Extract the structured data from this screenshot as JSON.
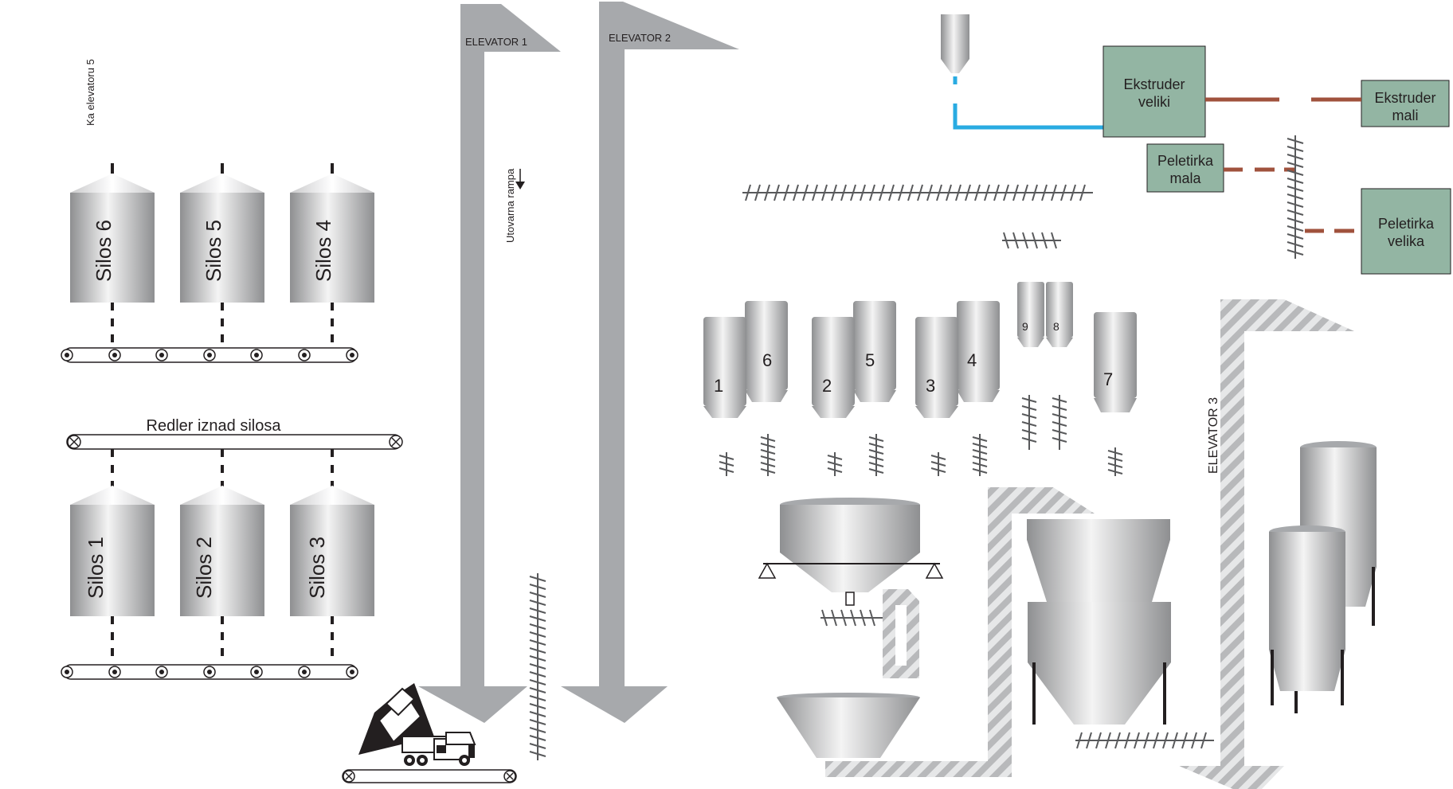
{
  "labels": {
    "ka_elevatoru": "Ka elevatoru 5",
    "redler": "Redler iznad silosa",
    "elevator1": "ELEVATOR 1",
    "elevator2": "ELEVATOR 2",
    "elevator3": "ELEVATOR 3",
    "utovarna": "Utovarna rampa"
  },
  "silos_top": [
    "Silos 6",
    "Silos 5",
    "Silos 4"
  ],
  "silos_bottom": [
    "Silos 1",
    "Silos 2",
    "Silos 3"
  ],
  "bins": {
    "b1": "1",
    "b2": "2",
    "b3": "3",
    "b4": "4",
    "b5": "5",
    "b6": "6",
    "b7": "7",
    "b8": "8",
    "b9": "9"
  },
  "machines": {
    "ekstruder_veliki": [
      "Ekstruder",
      "veliki"
    ],
    "ekstruder_mali": [
      "Ekstruder",
      "mali"
    ],
    "peletirka_mala": [
      "Peletirka",
      "mala"
    ],
    "peletirka_velika": [
      "Peletirka",
      "velika"
    ]
  },
  "colors": {
    "gray": "#a7a9ac",
    "machine_fill": "#93b5a3",
    "pipe_blue": "#29abe2",
    "link_brown": "#a0523d"
  }
}
